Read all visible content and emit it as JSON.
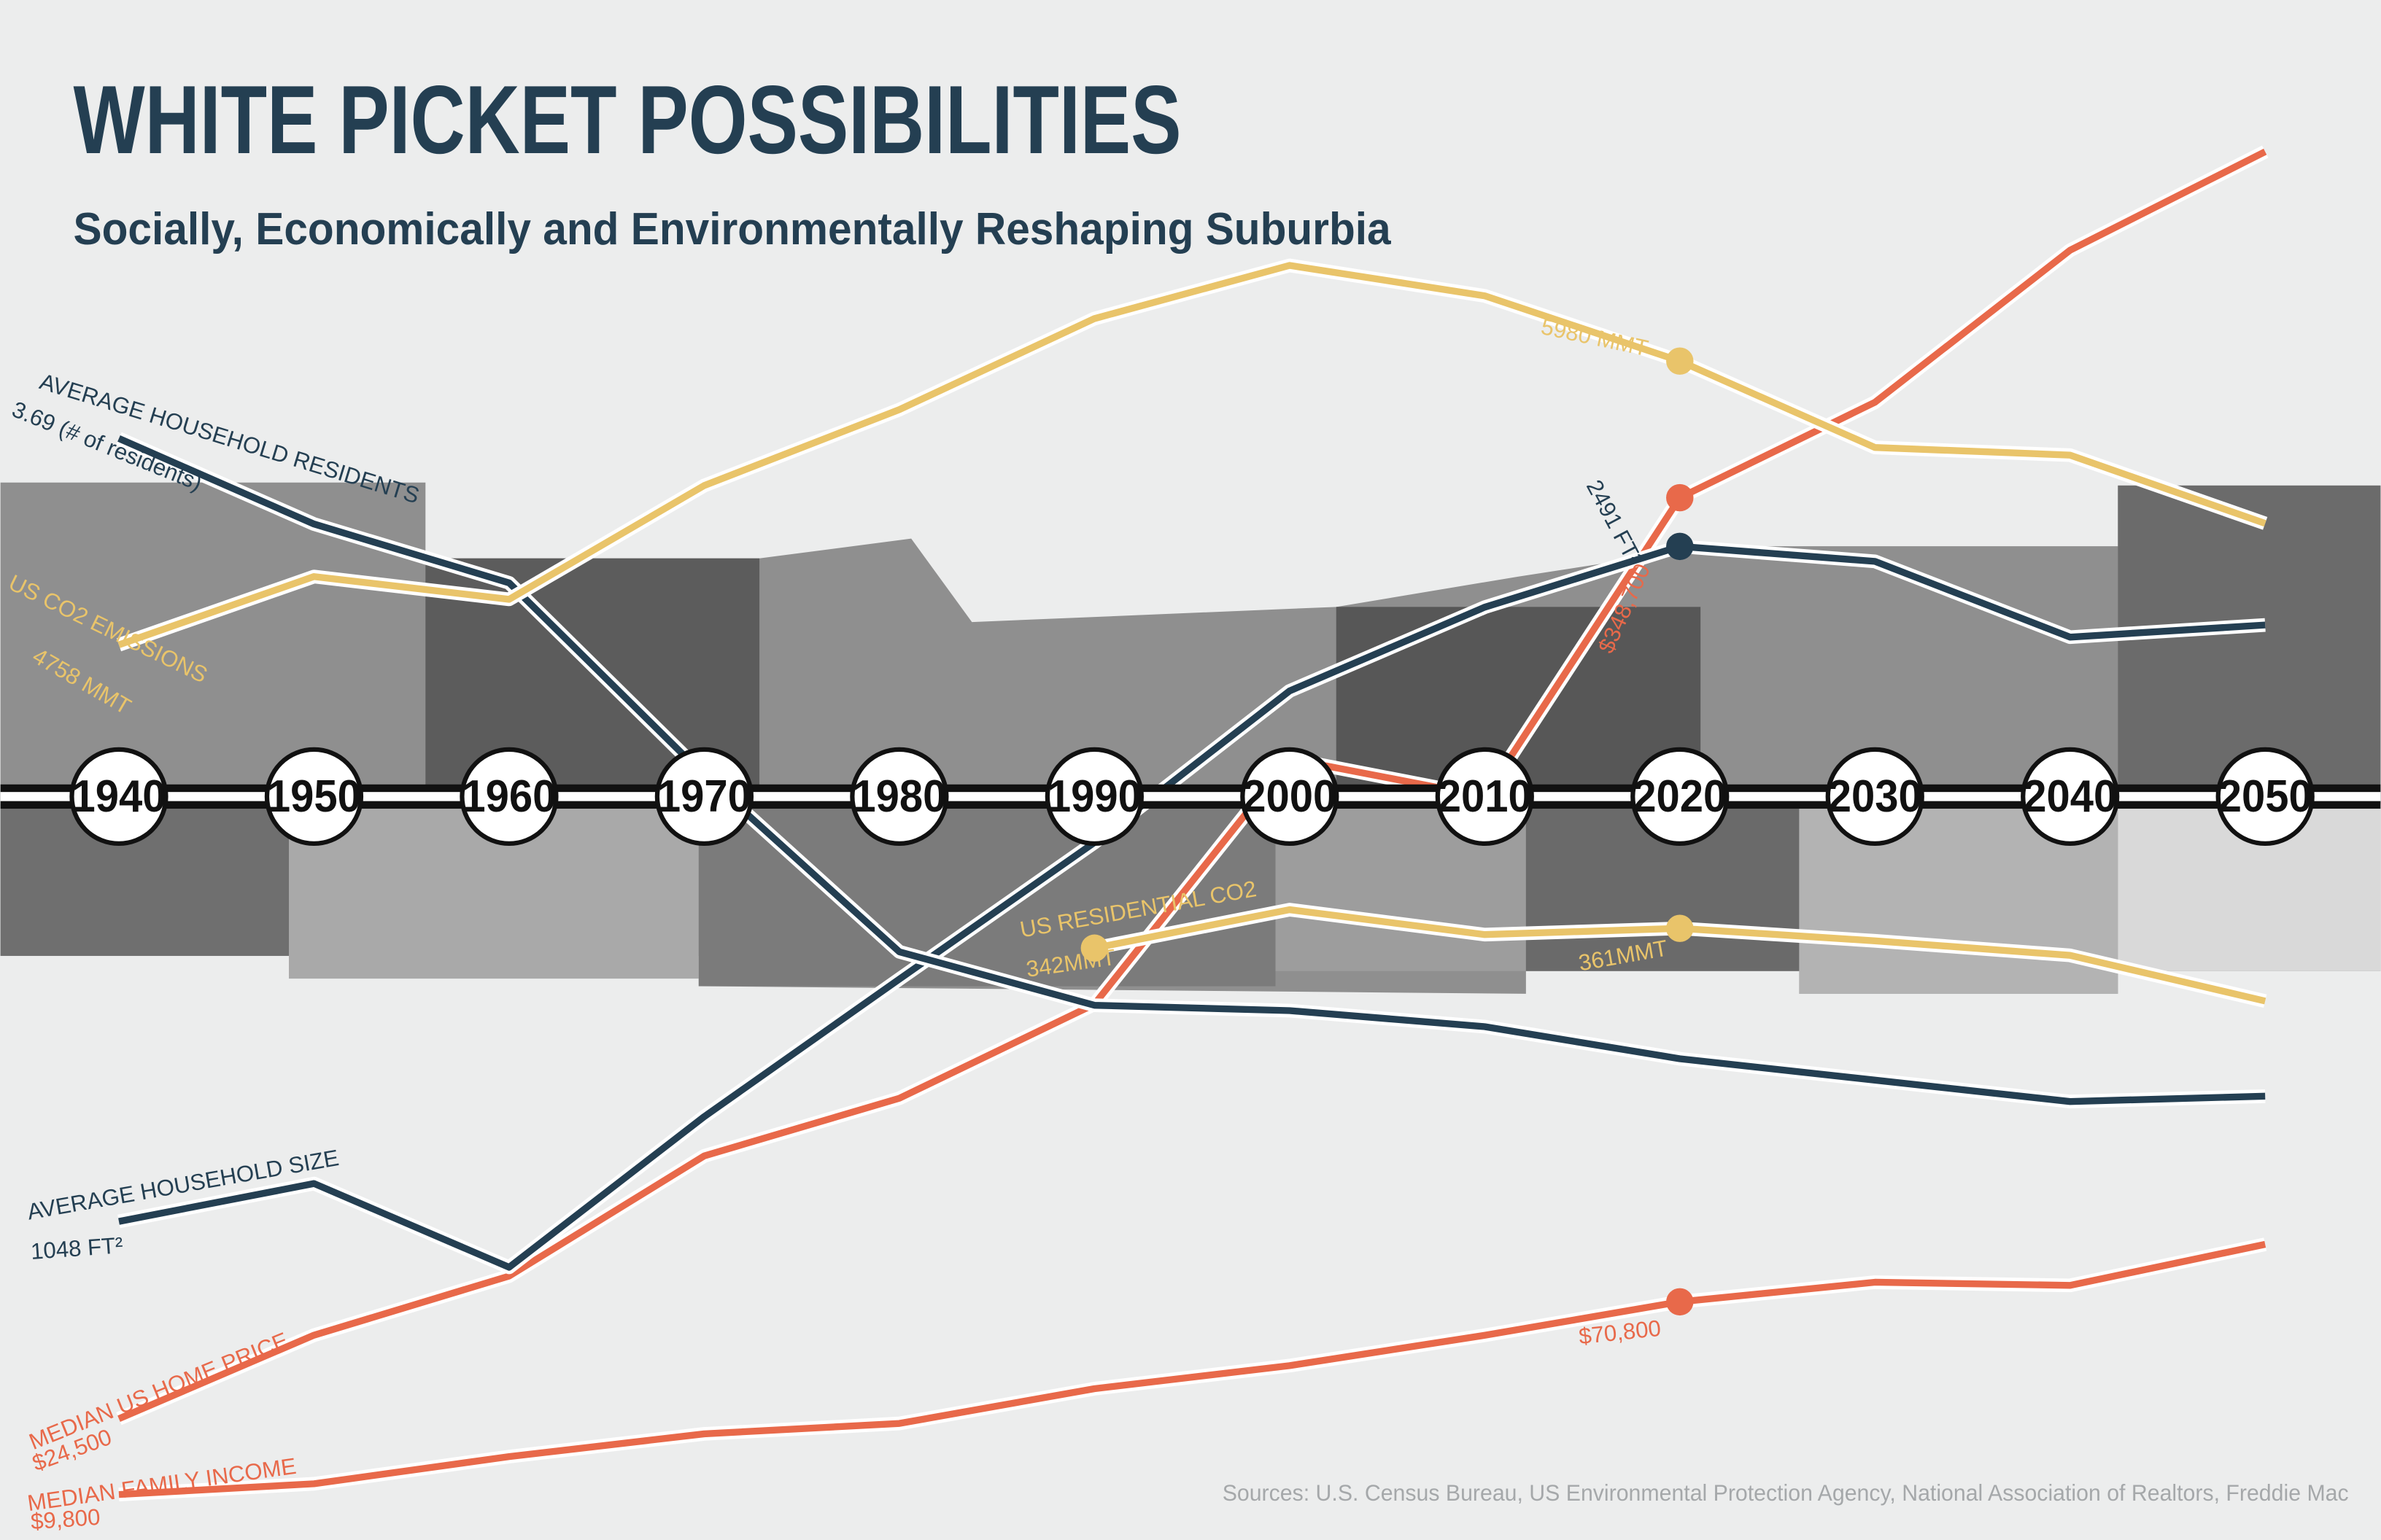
{
  "title": "WHITE PICKET POSSIBILITIES",
  "subtitle": "Socially, Economically and Environmentally Reshaping Suburbia",
  "source": "Sources: U.S. Census Bureau, US Environmental Protection Agency, National Association of Realtors, Freddie Mac",
  "chart_data": {
    "type": "line",
    "x": [
      1940,
      1950,
      1960,
      1970,
      1980,
      1990,
      2000,
      2010,
      2020,
      2030,
      2040,
      2050
    ],
    "series": [
      {
        "name": "MEDIAN FAMILY INCOME",
        "color": "#e8694a",
        "ylim": [
          -4600,
          482900
        ],
        "values": [
          9800,
          13200,
          21800,
          29000,
          32300,
          43300,
          50600,
          60200,
          70800,
          77000,
          76000,
          89000
        ],
        "value_labels": [
          "$9,800",
          null,
          null,
          null,
          null,
          null,
          null,
          null,
          "$70,800",
          null,
          null,
          null
        ]
      },
      {
        "name": "MEDIAN US HOME PRICE",
        "color": "#e8694a",
        "ylim": [
          -18200,
          523900
        ],
        "values": [
          24500,
          53900,
          74700,
          117000,
          137300,
          170400,
          256800,
          243500,
          348700,
          382300,
          435800,
          470500
        ],
        "value_labels": [
          "$24,500",
          null,
          null,
          null,
          null,
          null,
          null,
          null,
          "$348,700",
          null,
          null,
          null
        ]
      },
      {
        "name": "AVERAGE HOUSEHOLD SIZE",
        "color": "#243f52",
        "ylim": [
          367,
          3659
        ],
        "values": [
          1048,
          1129,
          950,
          1272,
          1566,
          1858,
          2182,
          2361,
          2491,
          2459,
          2297,
          2323
        ],
        "value_labels": [
          "1048 FT²",
          null,
          null,
          null,
          null,
          null,
          null,
          null,
          "2491 FT²",
          null,
          null,
          null
        ]
      },
      {
        "name": "AVERAGE HOUSEHOLD RESIDENTS",
        "color": "#243f52",
        "ylim": [
          1.63,
          4.51
        ],
        "values": [
          3.69,
          3.53,
          3.42,
          3.06,
          2.73,
          2.63,
          2.62,
          2.59,
          2.53,
          2.49,
          2.45,
          2.46
        ],
        "value_labels": [
          "3.69 (# of residents)",
          null,
          null,
          null,
          null,
          null,
          null,
          null,
          null,
          null,
          null,
          null
        ]
      },
      {
        "name": "US CO2 EMISSIONS",
        "color": "#e9c46a",
        "ylim": [
          903,
          7535
        ],
        "values": [
          4758,
          5052,
          4954,
          5444,
          5771,
          6163,
          6392,
          6261,
          5980,
          5608,
          5575,
          5281
        ],
        "value_labels": [
          "4758 MMT",
          null,
          null,
          null,
          null,
          null,
          null,
          null,
          "5980 MMT",
          null,
          null,
          null
        ]
      },
      {
        "name": "US RESIDENTIAL CO2",
        "color": "#e9c46a",
        "ylim": [
          -228,
          1255
        ],
        "values": [
          null,
          null,
          null,
          null,
          null,
          342,
          379,
          355,
          361,
          349,
          335,
          291
        ],
        "value_labels": [
          null,
          null,
          null,
          null,
          null,
          "342MMT",
          null,
          null,
          "361MMT",
          null,
          null,
          null
        ]
      }
    ]
  }
}
